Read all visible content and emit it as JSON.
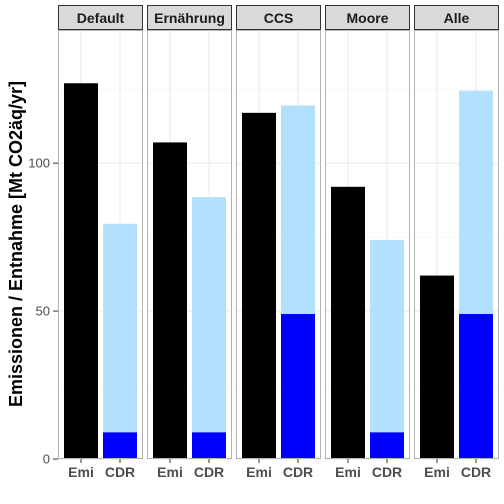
{
  "chart_data": {
    "type": "bar",
    "ylabel": "Emissionen / Entnahme [Mt CO2äq/yr]",
    "xlabel": "",
    "ylim": [
      0,
      145
    ],
    "yticks": [
      0,
      50,
      100
    ],
    "grid": true,
    "x_categories": [
      "Emi",
      "CDR"
    ],
    "colors": {
      "emissions": "#000000",
      "cdr_total": "#b3e0fc",
      "cdr_part": "#0000ff",
      "strip_bg": "#d9d9d9",
      "grid": "#ebebeb"
    },
    "panels": [
      {
        "name": "Default",
        "emi": 127,
        "cdr_total": 79.5,
        "cdr_part": 9
      },
      {
        "name": "Ernährung",
        "emi": 107,
        "cdr_total": 88.5,
        "cdr_part": 9
      },
      {
        "name": "CCS",
        "emi": 117,
        "cdr_total": 119.5,
        "cdr_part": 49
      },
      {
        "name": "Moore",
        "emi": 92,
        "cdr_total": 74,
        "cdr_part": 9
      },
      {
        "name": "Alle",
        "emi": 62,
        "cdr_total": 124.5,
        "cdr_part": 49
      }
    ]
  }
}
